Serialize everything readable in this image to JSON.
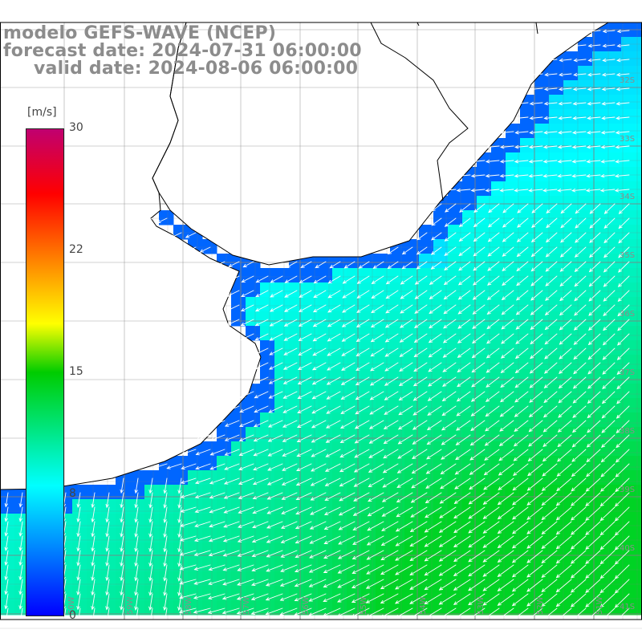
{
  "title": {
    "model": "modelo GEFS-WAVE (NCEP)",
    "forecast": "forecast date: 2024-07-31 06:00:00",
    "valid": "valid date: 2024-08-06 06:00:00"
  },
  "colorbar": {
    "unit": "[m/s]",
    "ticks": [
      "30",
      "22",
      "15",
      "8",
      "0"
    ],
    "range": [
      0,
      30
    ],
    "stops": [
      {
        "v": 0,
        "color": "#0000ff"
      },
      {
        "v": 4,
        "color": "#0080ff"
      },
      {
        "v": 8,
        "color": "#00ffff"
      },
      {
        "v": 15,
        "color": "#00cc00"
      },
      {
        "v": 18,
        "color": "#ffff00"
      },
      {
        "v": 22,
        "color": "#ff8000"
      },
      {
        "v": 26,
        "color": "#ff0000"
      },
      {
        "v": 30,
        "color": "#c00070"
      }
    ]
  },
  "map": {
    "lat_labels": [
      "32S",
      "33S",
      "34S",
      "35S",
      "36S",
      "37S",
      "38S",
      "39S",
      "40S",
      "41S"
    ],
    "lon_labels": [
      "60W",
      "59W",
      "58W",
      "57W",
      "56W",
      "55W",
      "54W",
      "53W",
      "52W",
      "51W"
    ],
    "wind_direction": "toward southwest / south",
    "colors": {
      "coast": "#000000",
      "grid": "#808080",
      "arrow": "#ffffff"
    }
  }
}
